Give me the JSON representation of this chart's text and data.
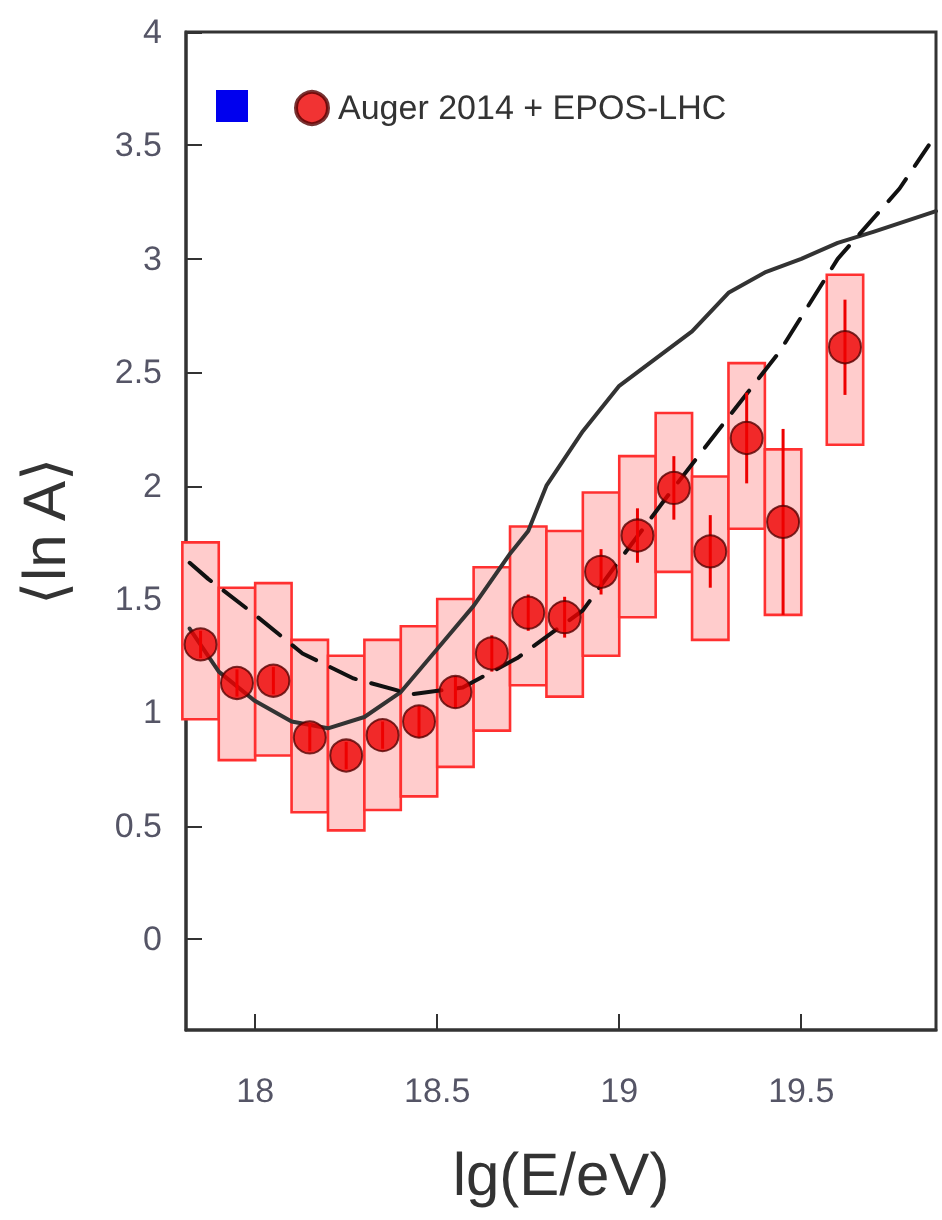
{
  "chart_data": {
    "type": "scatter",
    "xlabel": "lg(E/eV)",
    "ylabel": "⟨ln A⟩",
    "xlim": [
      17.81,
      19.87
    ],
    "ylim": [
      -0.4,
      4
    ],
    "xticks": [
      18,
      18.5,
      19,
      19.5
    ],
    "yticks": [
      0,
      0.5,
      1,
      1.5,
      2,
      2.5,
      3,
      3.5,
      4
    ],
    "grid": false,
    "legend": "top left",
    "series": [
      {
        "type": "bar",
        "color": "#ffcccc",
        "x": [
          17.85,
          17.95,
          18.05,
          18.15,
          18.25,
          18.35,
          18.45,
          18.55,
          18.65,
          18.75,
          18.85,
          18.95,
          19.05,
          19.15,
          19.25,
          19.35,
          19.45,
          19.62
        ],
        "base": [
          0.97,
          0.79,
          0.81,
          0.56,
          0.48,
          0.57,
          0.63,
          0.76,
          0.92,
          1.12,
          1.07,
          1.25,
          1.42,
          1.62,
          1.32,
          1.81,
          1.43,
          2.18
        ],
        "values": [
          0.78,
          0.76,
          0.76,
          0.76,
          0.77,
          0.75,
          0.75,
          0.74,
          0.72,
          0.7,
          0.73,
          0.72,
          0.71,
          0.7,
          0.72,
          0.73,
          0.73,
          0.75
        ]
      },
      {
        "type": "line",
        "color": "#333333",
        "line_style": "solid",
        "marker": "none",
        "x": [
          17.82,
          17.9,
          18.0,
          18.1,
          18.2,
          18.3,
          18.4,
          18.5,
          18.6,
          18.7,
          18.75,
          18.8,
          18.9,
          19.0,
          19.1,
          19.2,
          19.3,
          19.4,
          19.5,
          19.6,
          19.7,
          19.87
        ],
        "values": [
          1.37,
          1.18,
          1.05,
          0.96,
          0.93,
          0.98,
          1.09,
          1.28,
          1.47,
          1.7,
          1.8,
          2.0,
          2.24,
          2.44,
          2.56,
          2.68,
          2.85,
          2.94,
          3.0,
          3.07,
          3.12,
          3.21
        ]
      },
      {
        "type": "line",
        "color": "#111111",
        "line_style": "dashed",
        "marker": "none",
        "x": [
          17.82,
          17.87,
          18.0,
          18.13,
          18.27,
          18.43,
          18.57,
          18.72,
          18.9,
          19.0,
          19.14,
          19.27,
          19.44,
          19.6,
          19.77,
          19.85
        ],
        "values": [
          1.66,
          1.59,
          1.43,
          1.26,
          1.15,
          1.08,
          1.11,
          1.24,
          1.45,
          1.67,
          1.97,
          2.24,
          2.59,
          3.0,
          3.31,
          3.5
        ]
      },
      {
        "name": "Auger 2014 + EPOS-LHC",
        "color": "#ee0000",
        "marker": "circle",
        "x": [
          17.85,
          17.95,
          18.05,
          18.15,
          18.25,
          18.35,
          18.45,
          18.55,
          18.65,
          18.75,
          18.85,
          18.95,
          19.05,
          19.15,
          19.25,
          19.35,
          19.45,
          19.62
        ],
        "values": [
          1.3,
          1.13,
          1.14,
          0.89,
          0.81,
          0.9,
          0.96,
          1.09,
          1.26,
          1.44,
          1.42,
          1.62,
          1.78,
          1.99,
          1.71,
          2.21,
          1.84,
          2.61
        ],
        "errors": [
          0.06,
          0.06,
          0.06,
          0.06,
          0.06,
          0.06,
          0.07,
          0.07,
          0.08,
          0.08,
          0.09,
          0.1,
          0.12,
          0.14,
          0.16,
          0.2,
          0.41,
          0.21
        ]
      },
      {
        "color": "#0000ee",
        "marker": "square"
      }
    ]
  }
}
